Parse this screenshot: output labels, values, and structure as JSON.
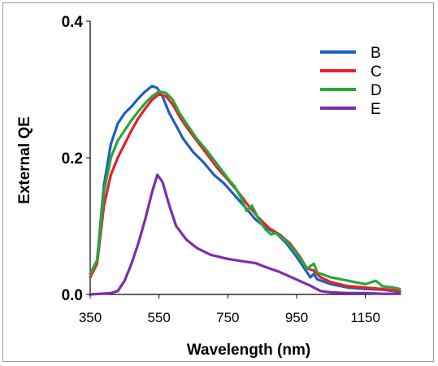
{
  "chart_data": {
    "type": "line",
    "xlabel": "Wavelength (nm)",
    "ylabel": "External QE",
    "xlim": [
      350,
      1250
    ],
    "ylim": [
      0,
      0.4
    ],
    "x_ticks": [
      "350",
      "550",
      "750",
      "950",
      "1150"
    ],
    "y_ticks": [
      "0.0",
      "0.2",
      "0.4"
    ],
    "grid": false,
    "legend_position": "top-right",
    "series": [
      {
        "name": "B",
        "color": "#1f5fbf",
        "points": [
          [
            350,
            0.03
          ],
          [
            370,
            0.05
          ],
          [
            390,
            0.16
          ],
          [
            410,
            0.22
          ],
          [
            430,
            0.25
          ],
          [
            450,
            0.265
          ],
          [
            470,
            0.275
          ],
          [
            490,
            0.287
          ],
          [
            510,
            0.297
          ],
          [
            530,
            0.305
          ],
          [
            545,
            0.302
          ],
          [
            560,
            0.29
          ],
          [
            580,
            0.265
          ],
          [
            600,
            0.247
          ],
          [
            620,
            0.228
          ],
          [
            650,
            0.208
          ],
          [
            680,
            0.193
          ],
          [
            710,
            0.175
          ],
          [
            740,
            0.162
          ],
          [
            770,
            0.145
          ],
          [
            800,
            0.128
          ],
          [
            830,
            0.11
          ],
          [
            860,
            0.098
          ],
          [
            890,
            0.09
          ],
          [
            920,
            0.075
          ],
          [
            950,
            0.055
          ],
          [
            970,
            0.04
          ],
          [
            990,
            0.025
          ],
          [
            1000,
            0.03
          ],
          [
            1010,
            0.022
          ],
          [
            1050,
            0.015
          ],
          [
            1100,
            0.01
          ],
          [
            1150,
            0.008
          ],
          [
            1200,
            0.007
          ],
          [
            1250,
            0.004
          ]
        ]
      },
      {
        "name": "C",
        "color": "#e8202a",
        "points": [
          [
            350,
            0.025
          ],
          [
            370,
            0.045
          ],
          [
            390,
            0.13
          ],
          [
            410,
            0.175
          ],
          [
            430,
            0.2
          ],
          [
            450,
            0.22
          ],
          [
            470,
            0.24
          ],
          [
            490,
            0.258
          ],
          [
            510,
            0.272
          ],
          [
            530,
            0.285
          ],
          [
            550,
            0.293
          ],
          [
            570,
            0.29
          ],
          [
            590,
            0.278
          ],
          [
            610,
            0.26
          ],
          [
            630,
            0.245
          ],
          [
            660,
            0.225
          ],
          [
            690,
            0.205
          ],
          [
            720,
            0.185
          ],
          [
            750,
            0.168
          ],
          [
            780,
            0.15
          ],
          [
            810,
            0.13
          ],
          [
            840,
            0.112
          ],
          [
            870,
            0.097
          ],
          [
            900,
            0.088
          ],
          [
            930,
            0.075
          ],
          [
            960,
            0.055
          ],
          [
            980,
            0.038
          ],
          [
            1000,
            0.035
          ],
          [
            1020,
            0.025
          ],
          [
            1050,
            0.018
          ],
          [
            1100,
            0.012
          ],
          [
            1150,
            0.01
          ],
          [
            1200,
            0.008
          ],
          [
            1250,
            0.005
          ]
        ]
      },
      {
        "name": "D",
        "color": "#27a83a",
        "points": [
          [
            350,
            0.03
          ],
          [
            370,
            0.05
          ],
          [
            390,
            0.15
          ],
          [
            410,
            0.2
          ],
          [
            430,
            0.225
          ],
          [
            450,
            0.24
          ],
          [
            470,
            0.255
          ],
          [
            490,
            0.268
          ],
          [
            510,
            0.28
          ],
          [
            530,
            0.29
          ],
          [
            550,
            0.297
          ],
          [
            570,
            0.295
          ],
          [
            590,
            0.285
          ],
          [
            610,
            0.265
          ],
          [
            630,
            0.25
          ],
          [
            660,
            0.228
          ],
          [
            690,
            0.21
          ],
          [
            720,
            0.19
          ],
          [
            750,
            0.17
          ],
          [
            770,
            0.158
          ],
          [
            790,
            0.14
          ],
          [
            805,
            0.122
          ],
          [
            820,
            0.13
          ],
          [
            840,
            0.11
          ],
          [
            860,
            0.095
          ],
          [
            875,
            0.088
          ],
          [
            890,
            0.09
          ],
          [
            920,
            0.078
          ],
          [
            950,
            0.06
          ],
          [
            980,
            0.038
          ],
          [
            1000,
            0.045
          ],
          [
            1010,
            0.032
          ],
          [
            1050,
            0.025
          ],
          [
            1100,
            0.02
          ],
          [
            1150,
            0.015
          ],
          [
            1180,
            0.02
          ],
          [
            1200,
            0.012
          ],
          [
            1230,
            0.01
          ],
          [
            1250,
            0.008
          ]
        ]
      },
      {
        "name": "E",
        "color": "#7b2fa8",
        "points": [
          [
            350,
            0.0
          ],
          [
            380,
            0.001
          ],
          [
            410,
            0.002
          ],
          [
            430,
            0.005
          ],
          [
            450,
            0.02
          ],
          [
            470,
            0.045
          ],
          [
            490,
            0.075
          ],
          [
            510,
            0.11
          ],
          [
            530,
            0.15
          ],
          [
            545,
            0.175
          ],
          [
            560,
            0.165
          ],
          [
            580,
            0.13
          ],
          [
            600,
            0.1
          ],
          [
            630,
            0.08
          ],
          [
            660,
            0.068
          ],
          [
            700,
            0.058
          ],
          [
            750,
            0.052
          ],
          [
            800,
            0.048
          ],
          [
            830,
            0.046
          ],
          [
            860,
            0.04
          ],
          [
            900,
            0.033
          ],
          [
            940,
            0.024
          ],
          [
            980,
            0.015
          ],
          [
            990,
            0.013
          ],
          [
            1000,
            0.01
          ],
          [
            1020,
            0.005
          ],
          [
            1050,
            0.003
          ],
          [
            1100,
            0.002
          ],
          [
            1150,
            0.002
          ],
          [
            1200,
            0.001
          ],
          [
            1250,
            0.001
          ]
        ]
      }
    ]
  }
}
